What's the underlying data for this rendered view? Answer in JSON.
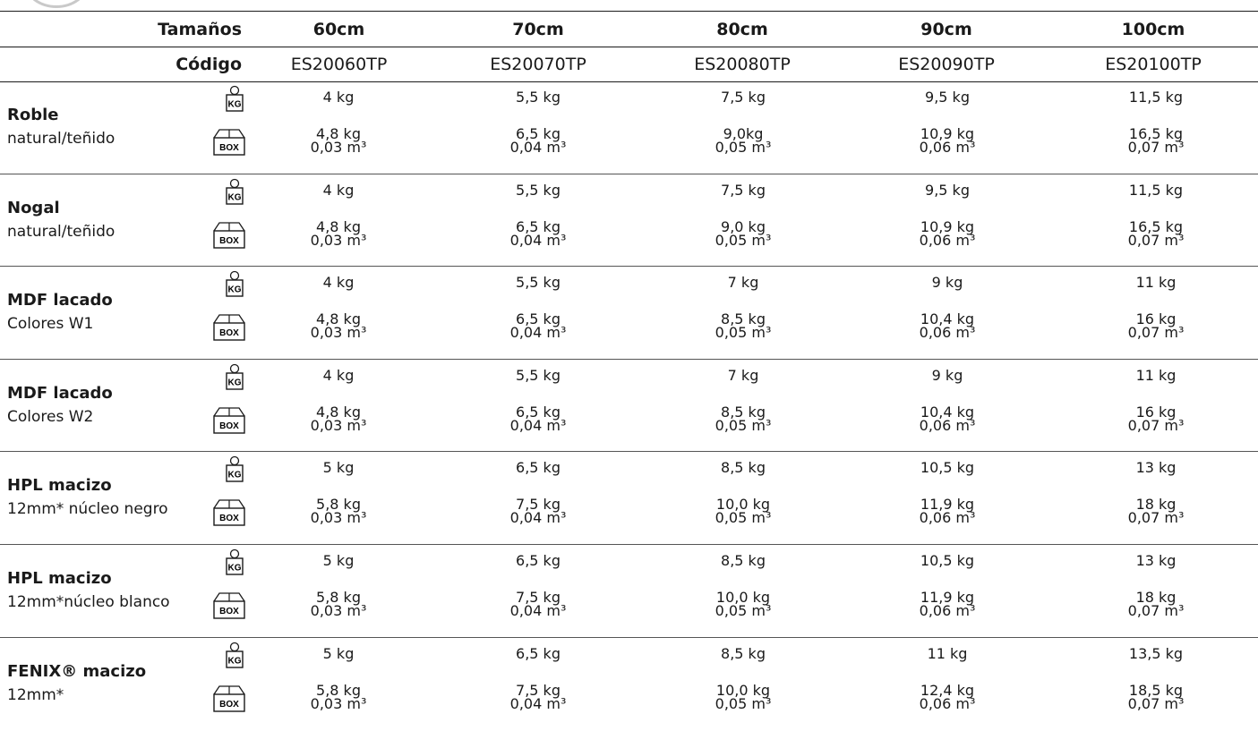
{
  "header": {
    "sizes_label": "Tamaños",
    "code_label": "Código",
    "sizes": [
      "60cm",
      "70cm",
      "80cm",
      "90cm",
      "100cm"
    ],
    "codes": [
      "ES20060TP",
      "ES20070TP",
      "ES20080TP",
      "ES20090TP",
      "ES20100TP"
    ]
  },
  "icons": {
    "weight_text": "KG",
    "box_text": "BOX"
  },
  "rows": [
    {
      "name": "Roble",
      "sub": "natural/teñido",
      "weight": [
        "4 kg",
        "5,5 kg",
        "7,5 kg",
        "9,5 kg",
        "11,5 kg"
      ],
      "box_weight": [
        "4,8 kg",
        "6,5 kg",
        "9,0kg",
        "10,9 kg",
        "16,5 kg"
      ],
      "box_volume": [
        "0,03 m³",
        "0,04 m³",
        "0,05 m³",
        "0,06 m³",
        "0,07 m³"
      ]
    },
    {
      "name": "Nogal",
      "sub": "natural/teñido",
      "weight": [
        "4 kg",
        "5,5 kg",
        "7,5 kg",
        "9,5 kg",
        "11,5 kg"
      ],
      "box_weight": [
        "4,8 kg",
        "6,5 kg",
        "9,0 kg",
        "10,9 kg",
        "16,5 kg"
      ],
      "box_volume": [
        "0,03 m³",
        "0,04 m³",
        "0,05 m³",
        "0,06 m³",
        "0,07 m³"
      ]
    },
    {
      "name": "MDF lacado",
      "sub": "Colores W1",
      "weight": [
        "4 kg",
        "5,5 kg",
        "7 kg",
        "9 kg",
        "11 kg"
      ],
      "box_weight": [
        "4,8 kg",
        "6,5 kg",
        "8,5 kg",
        "10,4 kg",
        "16 kg"
      ],
      "box_volume": [
        "0,03 m³",
        "0,04 m³",
        "0,05 m³",
        "0,06 m³",
        "0,07 m³"
      ]
    },
    {
      "name": "MDF lacado",
      "sub": "Colores W2",
      "weight": [
        "4 kg",
        "5,5 kg",
        "7 kg",
        "9 kg",
        "11 kg"
      ],
      "box_weight": [
        "4,8 kg",
        "6,5 kg",
        "8,5 kg",
        "10,4 kg",
        "16 kg"
      ],
      "box_volume": [
        "0,03 m³",
        "0,04 m³",
        "0,05 m³",
        "0,06 m³",
        "0,07 m³"
      ]
    },
    {
      "name": "HPL macizo",
      "sub": "12mm* núcleo negro",
      "weight": [
        "5 kg",
        "6,5 kg",
        "8,5 kg",
        "10,5 kg",
        "13 kg"
      ],
      "box_weight": [
        "5,8 kg",
        "7,5 kg",
        "10,0 kg",
        "11,9 kg",
        "18 kg"
      ],
      "box_volume": [
        "0,03 m³",
        "0,04 m³",
        "0,05 m³",
        "0,06 m³",
        "0,07 m³"
      ]
    },
    {
      "name": "HPL macizo",
      "sub": "12mm*núcleo blanco",
      "weight": [
        "5 kg",
        "6,5 kg",
        "8,5 kg",
        "10,5 kg",
        "13 kg"
      ],
      "box_weight": [
        "5,8 kg",
        "7,5 kg",
        "10,0 kg",
        "11,9 kg",
        "18 kg"
      ],
      "box_volume": [
        "0,03 m³",
        "0,04 m³",
        "0,05 m³",
        "0,06 m³",
        "0,07 m³"
      ]
    },
    {
      "name": "FENIX® macizo",
      "sub": "12mm*",
      "weight": [
        "5 kg",
        "6,5 kg",
        "8,5 kg",
        "11 kg",
        "13,5 kg"
      ],
      "box_weight": [
        "5,8 kg",
        "7,5 kg",
        "10,0 kg",
        "12,4 kg",
        "18,5 kg"
      ],
      "box_volume": [
        "0,03 m³",
        "0,04 m³",
        "0,05 m³",
        "0,06 m³",
        "0,07 m³"
      ]
    }
  ]
}
